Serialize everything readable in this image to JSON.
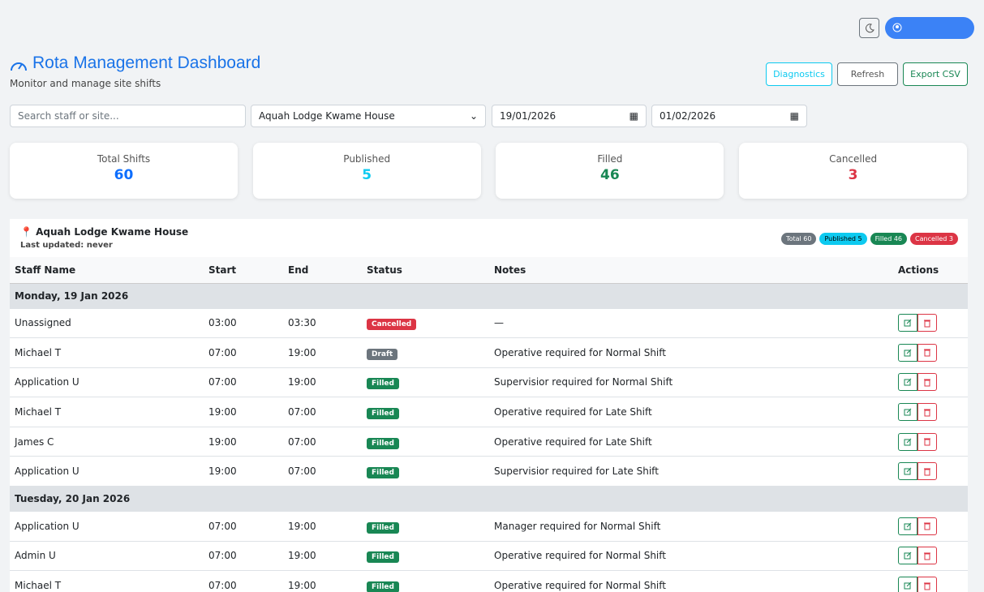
{
  "header": {
    "title": "Rota Management Dashboard",
    "subtitle": "Monitor and manage site shifts"
  },
  "buttons": {
    "diagnostics": "Diagnostics",
    "refresh": "Refresh",
    "export": "Export CSV"
  },
  "filters": {
    "search_placeholder": "Search staff or site...",
    "site": "Aquah Lodge Kwame House",
    "date_from": "19/01/2026",
    "date_to": "01/02/2026"
  },
  "stats": [
    {
      "label": "Total Shifts",
      "value": "60",
      "color": "#0d6efd"
    },
    {
      "label": "Published",
      "value": "5",
      "color": "#0dcaf0"
    },
    {
      "label": "Filled",
      "value": "46",
      "color": "#198754"
    },
    {
      "label": "Cancelled",
      "value": "3",
      "color": "#dc3545"
    }
  ],
  "site_panel": {
    "name": "Aquah Lodge Kwame House",
    "last_updated": "Last updated: never",
    "badges": [
      {
        "text": "Total 60",
        "color": "#6c757d",
        "text_color": "#ffffff"
      },
      {
        "text": "Published 5",
        "color": "#0dcaf0",
        "text_color": "#000000"
      },
      {
        "text": "Filled 46",
        "color": "#198754",
        "text_color": "#ffffff"
      },
      {
        "text": "Cancelled 3",
        "color": "#dc3545",
        "text_color": "#ffffff"
      }
    ]
  },
  "status_colors": {
    "Cancelled": "#dc3545",
    "Draft": "#6c757d",
    "Filled": "#198754"
  },
  "table": {
    "columns": [
      "Staff Name",
      "Start",
      "End",
      "Status",
      "Notes",
      "Actions"
    ],
    "groups": [
      {
        "date": "Monday, 19 Jan 2026",
        "rows": [
          [
            "Unassigned",
            "03:00",
            "03:30",
            "Cancelled",
            "—"
          ],
          [
            "Michael T",
            "07:00",
            "19:00",
            "Draft",
            "Operative required for Normal Shift"
          ],
          [
            "Application U",
            "07:00",
            "19:00",
            "Filled",
            "Supervisior required for Normal Shift"
          ],
          [
            "Michael T",
            "19:00",
            "07:00",
            "Filled",
            "Operative required for Late Shift"
          ],
          [
            "James C",
            "19:00",
            "07:00",
            "Filled",
            "Operative required for Late Shift"
          ],
          [
            "Application U",
            "19:00",
            "07:00",
            "Filled",
            "Supervisior required for Late Shift"
          ]
        ]
      },
      {
        "date": "Tuesday, 20 Jan 2026",
        "rows": [
          [
            "Application U",
            "07:00",
            "19:00",
            "Filled",
            "Manager required for Normal Shift"
          ],
          [
            "Admin U",
            "07:00",
            "19:00",
            "Filled",
            "Operative required for Normal Shift"
          ],
          [
            "Michael T",
            "07:00",
            "19:00",
            "Filled",
            "Operative required for Normal Shift"
          ]
        ]
      }
    ]
  }
}
